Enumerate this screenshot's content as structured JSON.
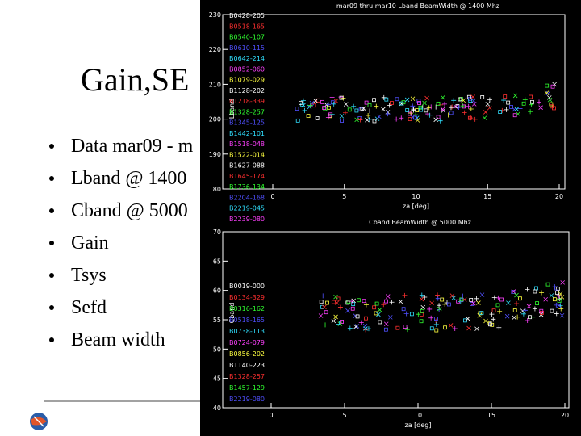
{
  "slide": {
    "title": "Gain,SE",
    "bullets": [
      "Data mar09 - m",
      "Lband @ 1400",
      "Cband @ 5000",
      "Gain",
      "Tsys",
      "Sefd",
      "Beam width"
    ]
  },
  "plots": [
    {
      "title": "mar09 thru mar10 Lband BeamWidth @ 1400 Mhz",
      "y_label": "Lband",
      "x_label": "za [deg]",
      "xticks": [
        "0",
        "5",
        "10",
        "15",
        "20"
      ],
      "yticks": [
        "230",
        "220",
        "210",
        "200",
        "190",
        "180"
      ],
      "legend": [
        "B0428-205",
        "B0518-165",
        "B0540-107",
        "B0610-115",
        "B0642-214",
        "B0852-060",
        "B1079-029",
        "B1128-202",
        "B1218-339",
        "B1328-257",
        "B1345-125",
        "B1442-101",
        "B1518-048",
        "B1522-014",
        "B1627-088",
        "B1645-174",
        "B1736-134",
        "B2204-168",
        "B2219-045",
        "B2239-080"
      ]
    },
    {
      "title": "Cband BeamWidth @ 5000 Mhz",
      "y_label": "Cband",
      "x_label": "za [deg]",
      "xticks": [
        "0",
        "5",
        "10",
        "15",
        "20"
      ],
      "yticks": [
        "70",
        "65",
        "60",
        "55",
        "50",
        "45",
        "40"
      ],
      "legend": [
        "B0019-000",
        "B0134-329",
        "B0316-162",
        "B0518-165",
        "B0738-113",
        "B0724-079",
        "B0856-202",
        "B1140-223",
        "B1328-257",
        "B1457-129",
        "B2219-080"
      ]
    }
  ]
}
